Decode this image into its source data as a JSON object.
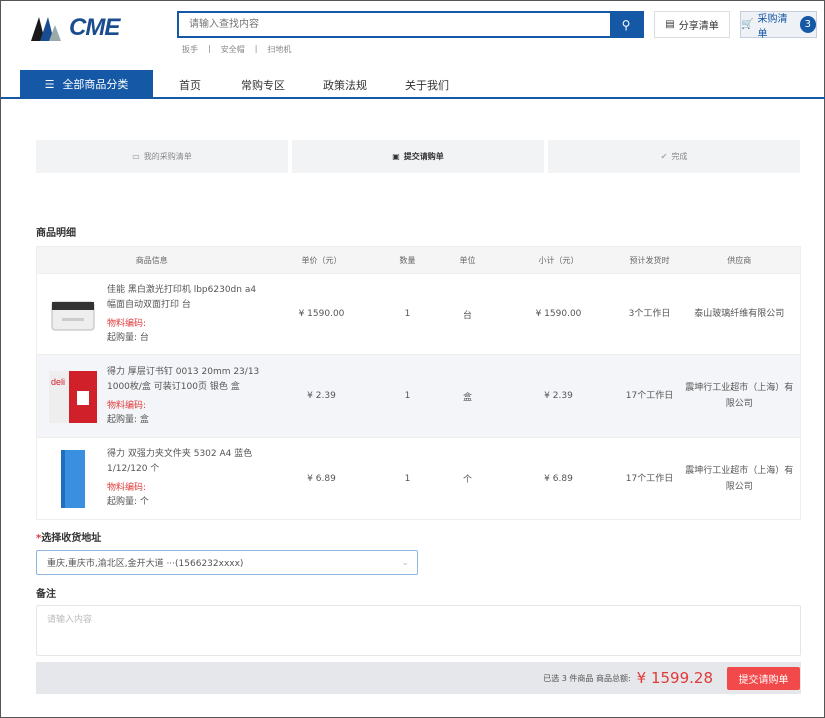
{
  "header": {
    "logo_text": "CME",
    "search_placeholder": "请输入查找内容",
    "hot_words": [
      "扳手",
      "安全帽",
      "扫地机"
    ],
    "share_label": "分享清单",
    "cart_label": "采购清单",
    "cart_count": "3"
  },
  "nav": {
    "category_label": "全部商品分类",
    "items": [
      "首页",
      "常购专区",
      "政策法规",
      "关于我们"
    ]
  },
  "steps": [
    {
      "label": "我的采购清单",
      "icon": "list-icon"
    },
    {
      "label": "提交请购单",
      "icon": "submit-doc-icon",
      "active": true
    },
    {
      "label": "完成",
      "icon": "check-circle-icon"
    }
  ],
  "detail": {
    "title": "商品明细",
    "columns": [
      "商品信息",
      "单价（元）",
      "数量",
      "单位",
      "小计（元）",
      "预计发货时",
      "供应商"
    ],
    "rows": [
      {
        "name": "佳能 黑白激光打印机 lbp6230dn a4 幅面自动双面打印 台",
        "code_label": "物料编码:",
        "min_label": "起购量: 台",
        "price": "¥ 1590.00",
        "qty": "1",
        "unit": "台",
        "subtotal": "¥ 1590.00",
        "ship": "3个工作日",
        "supplier": "泰山玻璃纤维有限公司",
        "image": "printer"
      },
      {
        "name": "得力 厚层订书钉 0013 20mm 23/13 1000枚/盒 可装订100页 银色 盒",
        "code_label": "物料编码:",
        "min_label": "起购量: 盒",
        "price": "¥ 2.39",
        "qty": "1",
        "unit": "盒",
        "subtotal": "¥ 2.39",
        "ship": "17个工作日",
        "supplier": "震坤行工业超市（上海）有限公司",
        "image": "staples"
      },
      {
        "name": "得力 双强力夹文件夹 5302 A4 蓝色 1/12/120 个",
        "code_label": "物料编码:",
        "min_label": "起购量: 个",
        "price": "¥ 6.89",
        "qty": "1",
        "unit": "个",
        "subtotal": "¥ 6.89",
        "ship": "17个工作日",
        "supplier": "震坤行工业超市（上海）有限公司",
        "image": "folder"
      }
    ]
  },
  "address": {
    "required_mark": "*",
    "label": "选择收货地址",
    "value": "重庆,重庆市,渝北区,金开大道 ···(1566232xxxx)"
  },
  "remark": {
    "label": "备注",
    "placeholder": "请输入内容"
  },
  "footer": {
    "summary": "已选 3 件商品 商品总额:",
    "total": "¥ 1599.28",
    "submit_label": "提交请购单"
  },
  "colors": {
    "brand": "#1558a6",
    "accent_red": "#f24a4a"
  }
}
